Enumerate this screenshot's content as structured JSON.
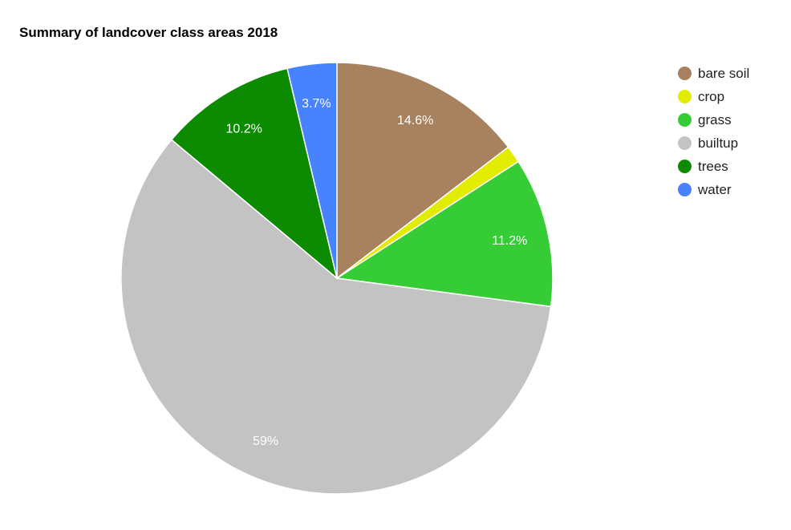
{
  "chart_data": {
    "type": "pie",
    "title": "Summary of landcover class areas 2018",
    "legend_position": "right",
    "slices": [
      {
        "label": "bare soil",
        "value": 14.6,
        "display": "14.6%",
        "color": "#a8825f"
      },
      {
        "label": "crop",
        "value": 1.3,
        "display": "",
        "color": "#e2ec00"
      },
      {
        "label": "grass",
        "value": 11.2,
        "display": "11.2%",
        "color": "#36cc36"
      },
      {
        "label": "builtup",
        "value": 59.0,
        "display": "59%",
        "color": "#c3c3c3"
      },
      {
        "label": "trees",
        "value": 10.2,
        "display": "10.2%",
        "color": "#0c8a00"
      },
      {
        "label": "water",
        "value": 3.7,
        "display": "3.7%",
        "color": "#4782ff"
      }
    ]
  }
}
